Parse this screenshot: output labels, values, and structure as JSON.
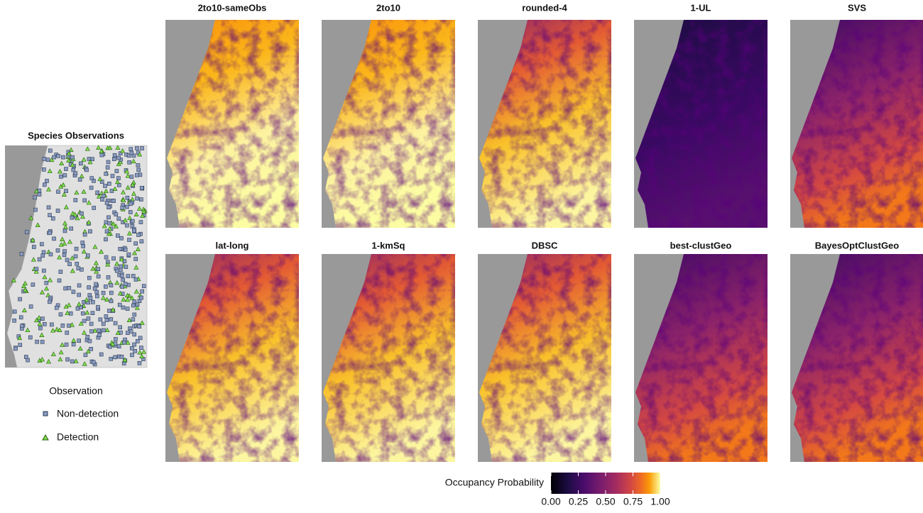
{
  "observations": {
    "title": "Species Observations",
    "legend": {
      "title": "Observation",
      "items": [
        "Non-detection",
        "Detection"
      ]
    }
  },
  "panels": [
    "2to10-sameObs",
    "2to10",
    "rounded-4",
    "1-UL",
    "SVS",
    "lat-long",
    "1-kmSq",
    "DBSC",
    "best-clustGeo",
    "BayesOptClustGeo"
  ],
  "colorbar": {
    "title": "Occupancy Probability",
    "lim": [
      0,
      1
    ],
    "ticks": [
      {
        "value": 0,
        "label": "0.00"
      },
      {
        "value": 0.25,
        "label": "0.25"
      },
      {
        "value": 0.5,
        "label": "0.50"
      },
      {
        "value": 0.75,
        "label": "0.75"
      },
      {
        "value": 1,
        "label": "1.00"
      }
    ]
  }
}
